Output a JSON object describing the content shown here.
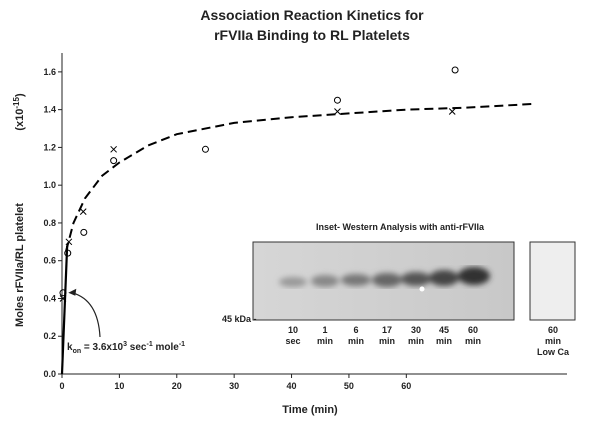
{
  "chart_data": {
    "type": "scatter",
    "title": [
      "Association Reaction Kinetics for",
      "rFVIIa Binding to RL Platelets"
    ],
    "y_label": "Moles rFVIIa/RL platelet",
    "y_unit": [
      "(x10",
      "-15",
      ")"
    ],
    "x_label": "Time (min)",
    "xlim": [
      0,
      88
    ],
    "ylim": [
      0,
      1.7
    ],
    "xticks": [
      0,
      10,
      20,
      30,
      40,
      50,
      60
    ],
    "yticks": [
      {
        "value": 0,
        "label": "0.0"
      },
      0.2,
      0.4,
      0.6,
      0.8,
      {
        "value": 1,
        "label": "1.0"
      },
      1.2,
      1.4,
      1.6
    ],
    "series": [
      {
        "marker": "circle",
        "color": "#000000",
        "x": [
          0.17,
          1,
          3.8,
          9,
          25,
          48,
          68.5
        ],
        "values": [
          0.43,
          0.64,
          0.75,
          1.13,
          1.19,
          1.45,
          1.61
        ]
      },
      {
        "marker": "x",
        "color": "#000000",
        "x": [
          0.17,
          1.2,
          3.7,
          9,
          48,
          68
        ],
        "values": [
          0.4,
          0.7,
          0.86,
          1.19,
          1.39,
          1.39
        ]
      },
      {
        "line": "dashed",
        "color": "#000000",
        "x": [
          0.7,
          2,
          4,
          7,
          10,
          15,
          20,
          30,
          40,
          50,
          60,
          70,
          82
        ],
        "values": [
          0.65,
          0.8,
          0.93,
          1.05,
          1.12,
          1.21,
          1.27,
          1.33,
          1.36,
          1.38,
          1.4,
          1.41,
          1.43
        ]
      },
      {
        "line": "solid",
        "color": "#000000",
        "x": [
          0,
          0.9
        ],
        "values": [
          0,
          0.68
        ]
      }
    ],
    "annotation": {
      "parts": [
        "k",
        "on",
        " = 3.6x10",
        "3",
        " sec",
        "-1",
        " mole",
        "-1"
      ],
      "x": 0.4,
      "value": 0.43
    },
    "inset": {
      "title": "Inset- Western Analysis with anti-rFVIIa",
      "marker_label": "45 kDa -",
      "lanes": [
        [
          "10",
          "sec"
        ],
        [
          "1",
          "min"
        ],
        [
          "6",
          "min"
        ],
        [
          "17",
          "min"
        ],
        [
          "30",
          "min"
        ],
        [
          "45",
          "min"
        ],
        [
          "60",
          "min"
        ]
      ],
      "control_lane": [
        "60",
        "min",
        "Low Ca"
      ]
    }
  }
}
